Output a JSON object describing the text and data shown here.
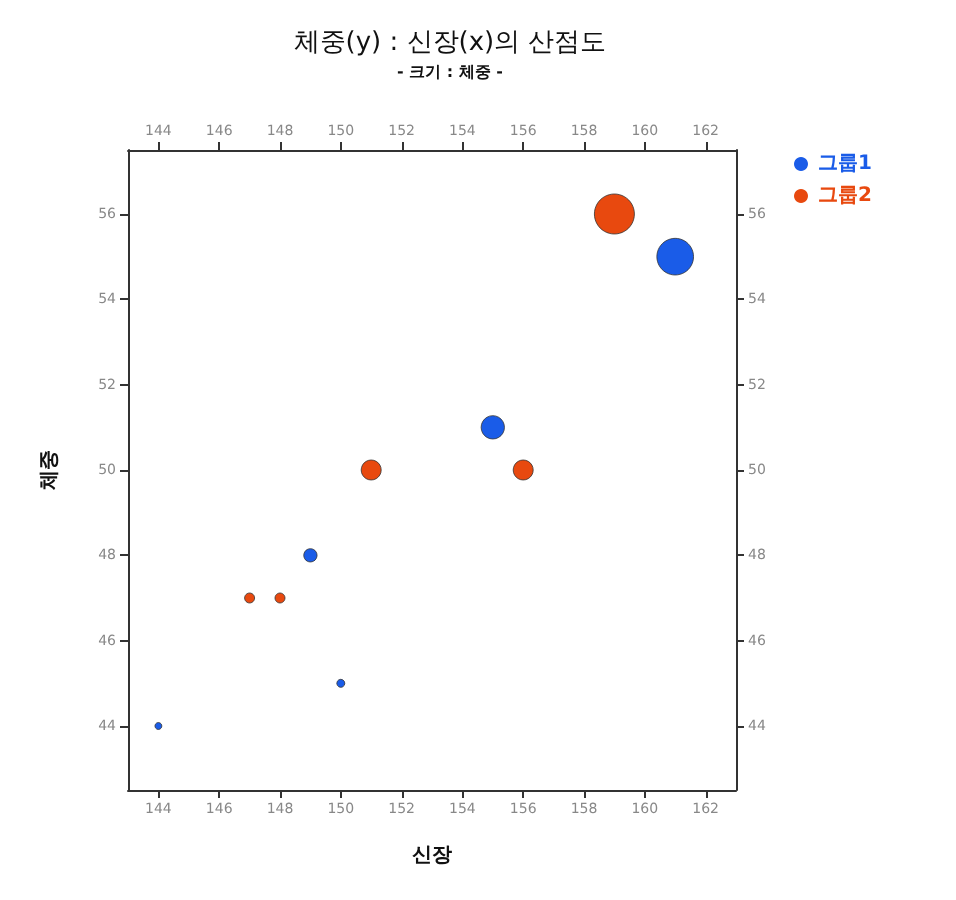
{
  "chart_data": {
    "type": "bubble",
    "title": "체중(y) : 신장(x)의 산점도",
    "subtitle": "- 크기 : 체중 -",
    "xlabel": "신장",
    "ylabel": "체중",
    "xlim": [
      143,
      163
    ],
    "xticks": [
      144,
      146,
      148,
      150,
      152,
      154,
      156,
      158,
      160,
      162
    ],
    "x2lim": [
      143,
      163
    ],
    "x2ticks": [
      144,
      146,
      148,
      150,
      152,
      154,
      156,
      158,
      160,
      162
    ],
    "ylim": [
      42.5,
      57.5
    ],
    "yticks": [
      44,
      46,
      48,
      50,
      52,
      54,
      56
    ],
    "y2lim": [
      42.5,
      57.5
    ],
    "y2ticks": [
      44,
      46,
      48,
      50,
      52,
      54,
      56
    ],
    "legend": "top right",
    "marker": "circle",
    "grid": false,
    "series": [
      {
        "name": "그룹1",
        "color": "#1a5ce8",
        "x": [
          161,
          155,
          149,
          150,
          144
        ],
        "values": [
          55,
          51,
          48,
          45,
          44
        ],
        "sizes": [
          0.84,
          0.34,
          0.11,
          0.04,
          0.03
        ]
      },
      {
        "name": "그룹2",
        "color": "#e8490f",
        "x": [
          159,
          151,
          156,
          147,
          148
        ],
        "values": [
          56,
          50,
          50,
          47,
          47
        ],
        "sizes": [
          1,
          0.25,
          0.25,
          0.0625,
          0.0625
        ]
      }
    ]
  }
}
